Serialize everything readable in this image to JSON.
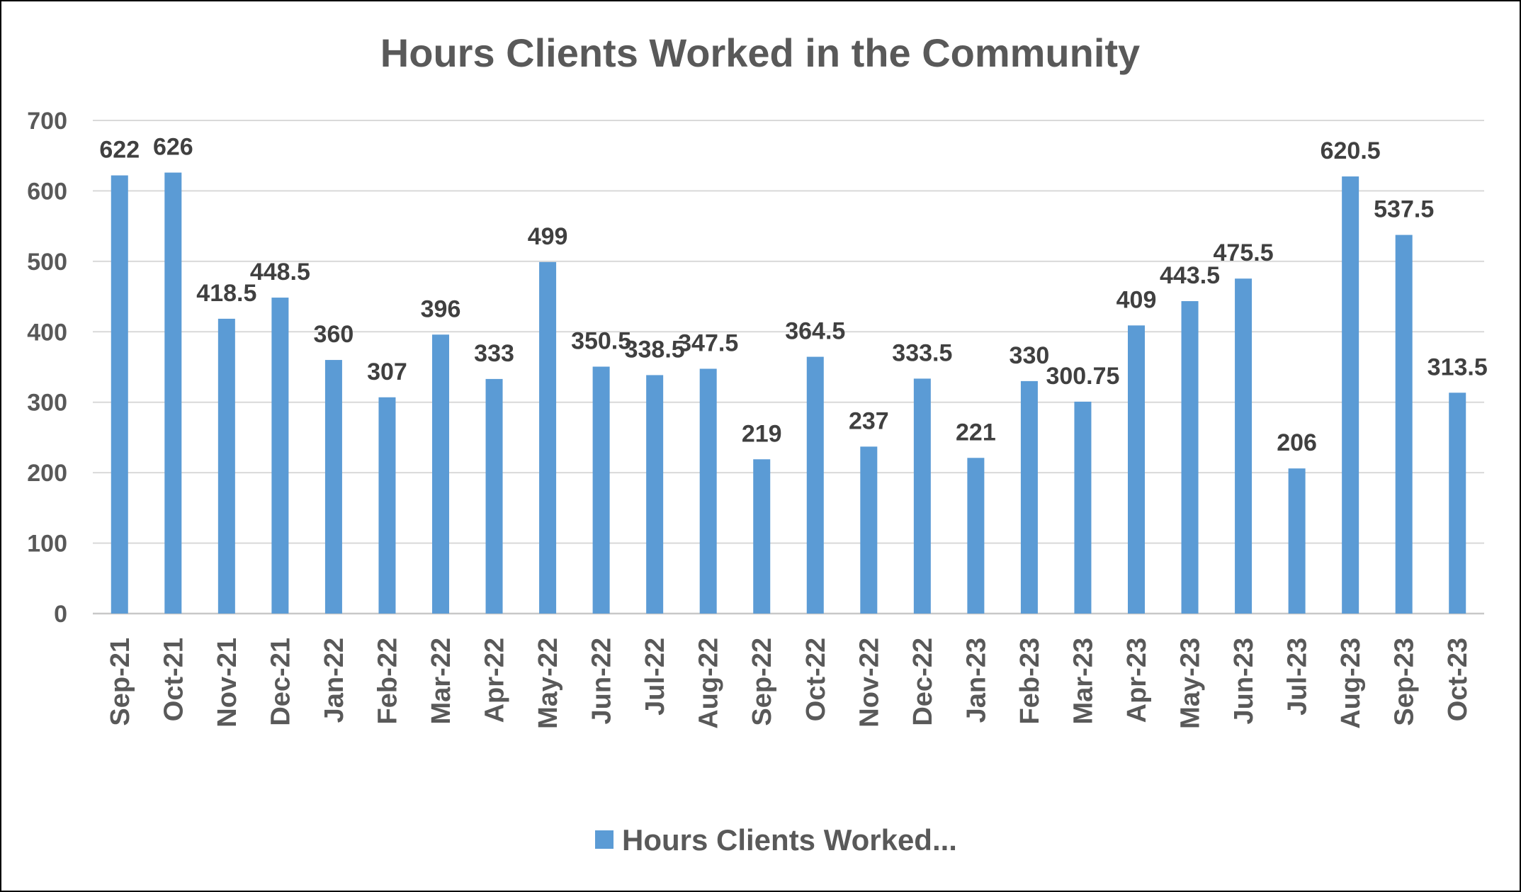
{
  "chart_data": {
    "type": "bar",
    "title": "Hours Clients Worked in the Community",
    "xlabel": "",
    "ylabel": "",
    "ylim": [
      0,
      700
    ],
    "yticks": [
      0,
      100,
      200,
      300,
      400,
      500,
      600,
      700
    ],
    "grid": true,
    "legend_position": "bottom",
    "bar_color": "#5B9BD5",
    "categories": [
      "Sep-21",
      "Oct-21",
      "Nov-21",
      "Dec-21",
      "Jan-22",
      "Feb-22",
      "Mar-22",
      "Apr-22",
      "May-22",
      "Jun-22",
      "Jul-22",
      "Aug-22",
      "Sep-22",
      "Oct-22",
      "Nov-22",
      "Dec-22",
      "Jan-23",
      "Feb-23",
      "Mar-23",
      "Apr-23",
      "May-23",
      "Jun-23",
      "Jul-23",
      "Aug-23",
      "Sep-23",
      "Oct-23"
    ],
    "series": [
      {
        "name": "Hours Clients Worked...",
        "values": [
          622,
          626,
          418.5,
          448.5,
          360,
          307,
          396,
          333,
          499,
          350.5,
          338.5,
          347.5,
          219,
          364.5,
          237,
          333.5,
          221,
          330,
          300.75,
          409,
          443.5,
          475.5,
          206,
          620.5,
          537.5,
          313.5
        ]
      }
    ]
  }
}
